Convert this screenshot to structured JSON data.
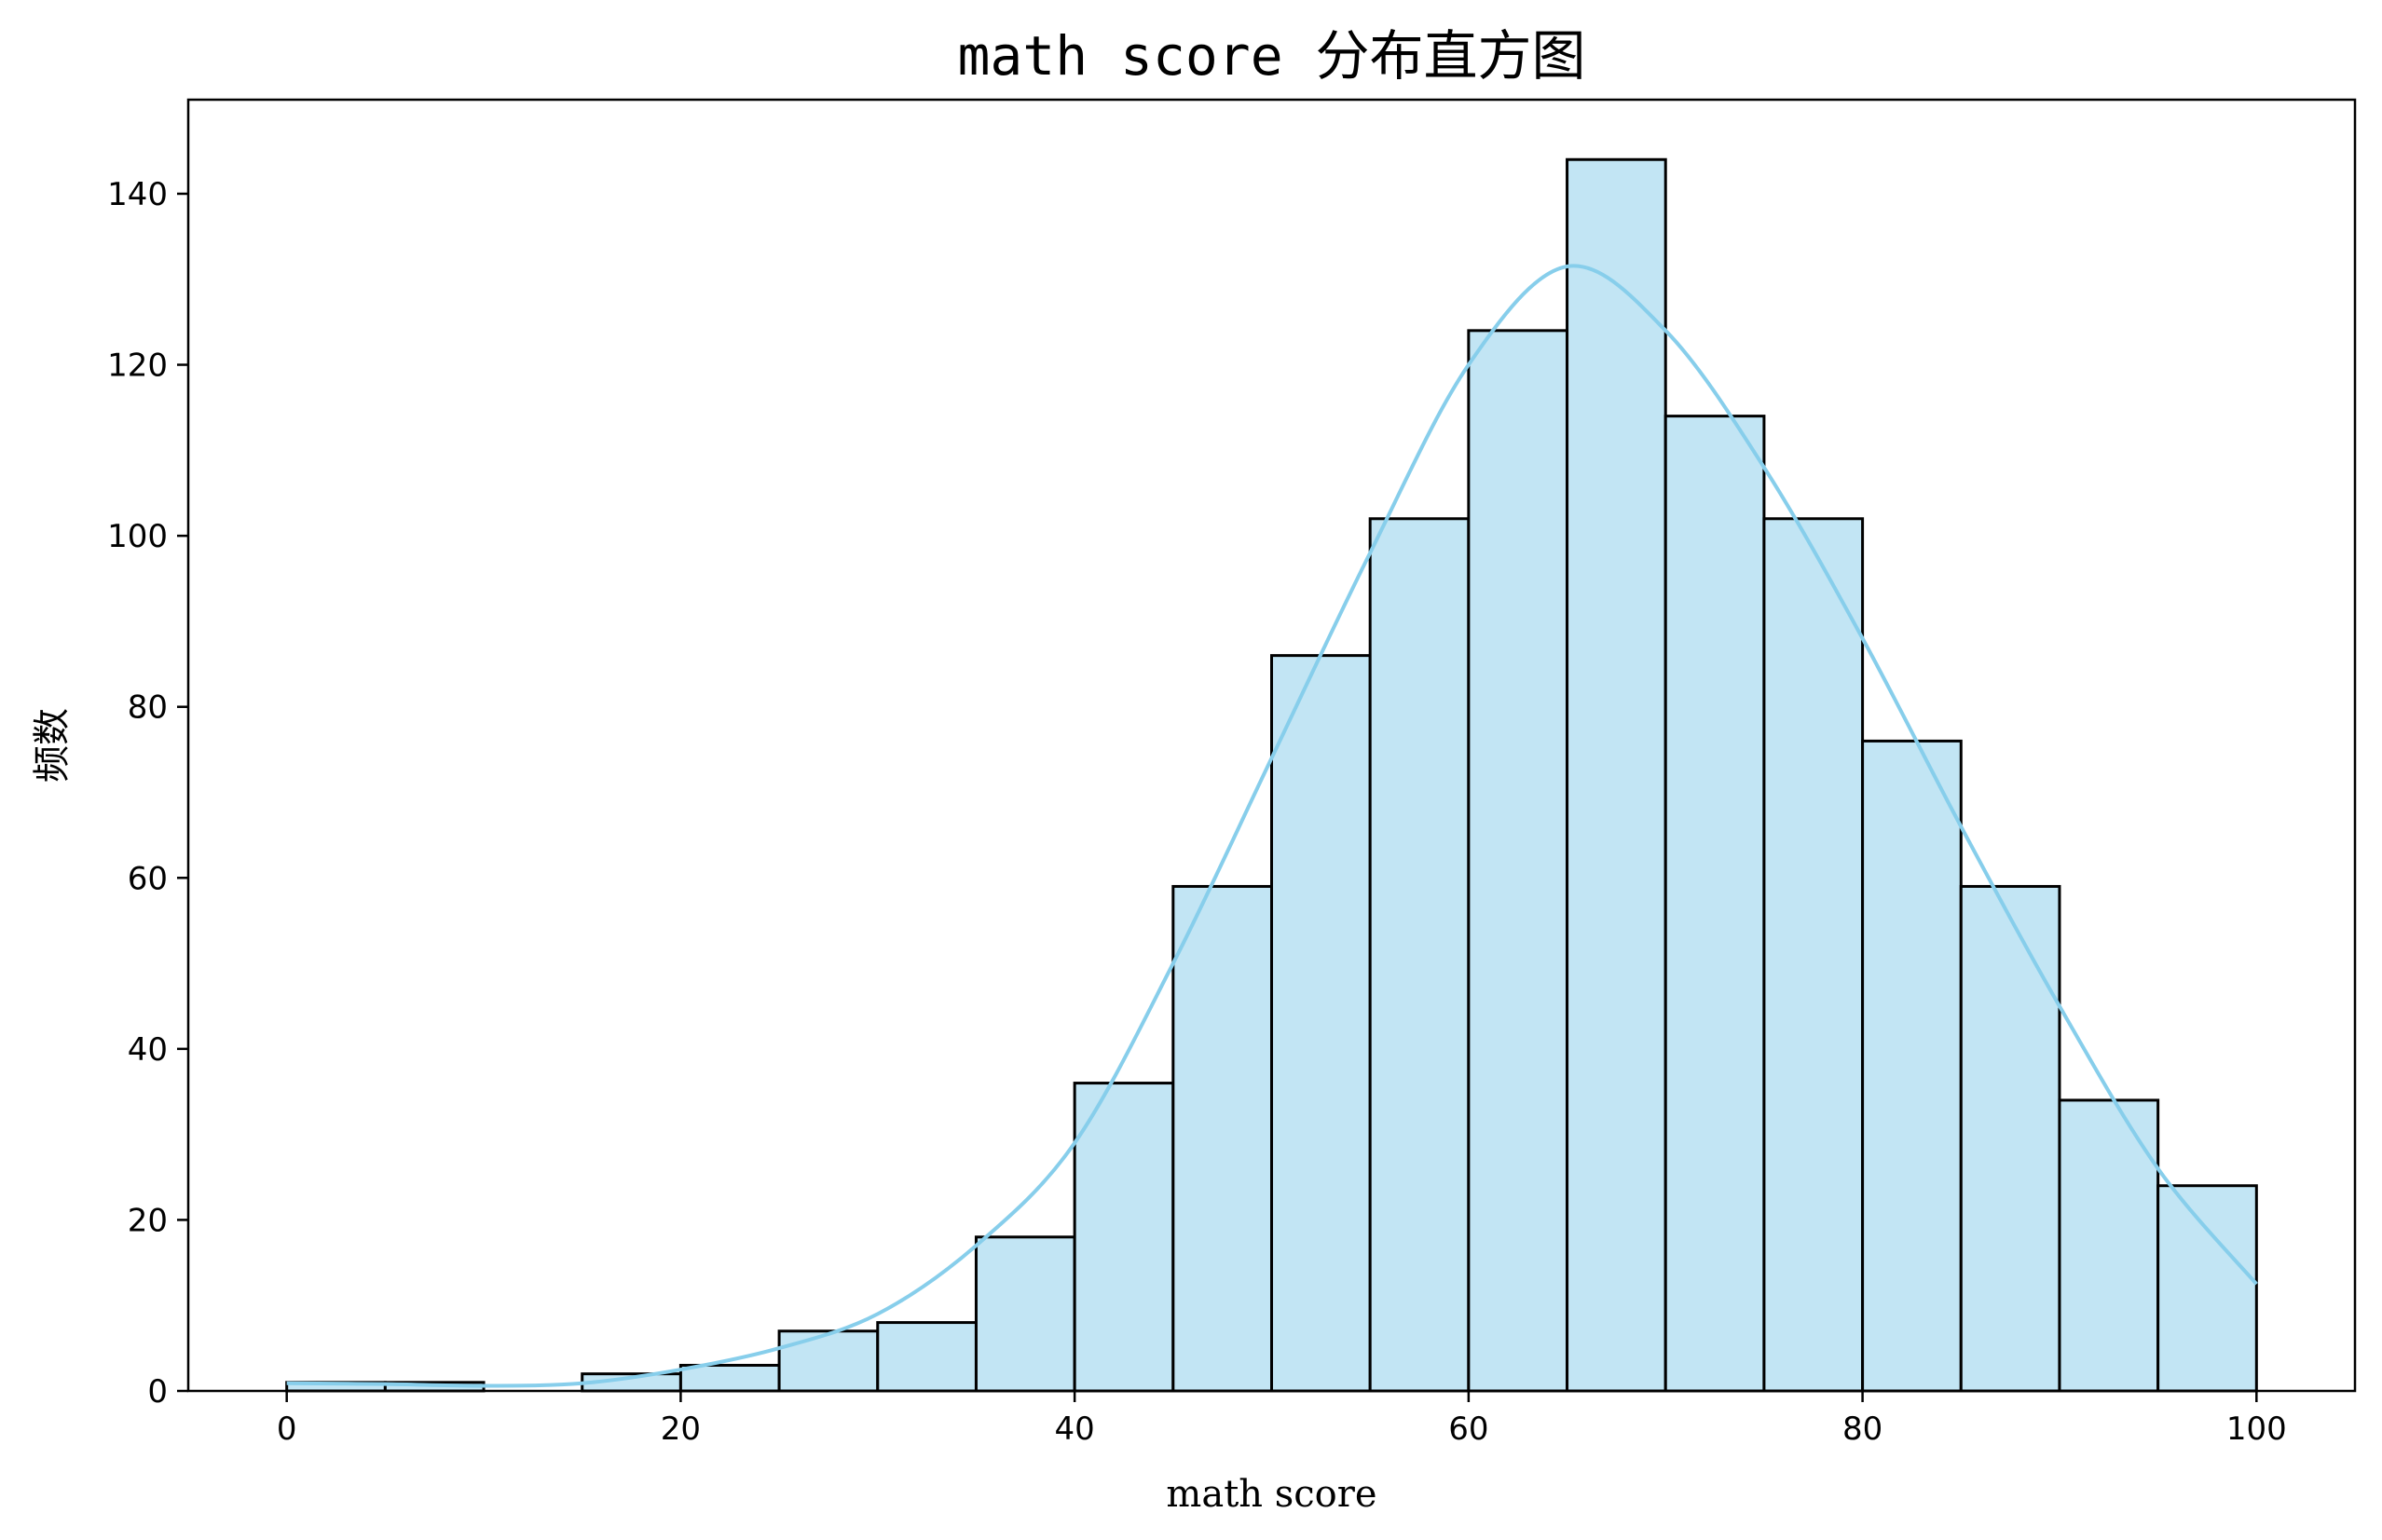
{
  "chart_data": {
    "type": "bar",
    "title": "math score 分布直方图",
    "xlabel": "math score",
    "ylabel": "频数",
    "xlim": [
      -5,
      105
    ],
    "ylim": [
      0,
      151
    ],
    "xticks": [
      "0",
      "20",
      "40",
      "60",
      "80",
      "100"
    ],
    "yticks": [
      "0",
      "20",
      "40",
      "60",
      "80",
      "100",
      "120",
      "140"
    ],
    "bins": [
      {
        "x0": 0,
        "x1": 5,
        "count": 1
      },
      {
        "x0": 5,
        "x1": 10,
        "count": 1
      },
      {
        "x0": 10,
        "x1": 15,
        "count": 0
      },
      {
        "x0": 15,
        "x1": 20,
        "count": 2
      },
      {
        "x0": 20,
        "x1": 25,
        "count": 3
      },
      {
        "x0": 25,
        "x1": 30,
        "count": 7
      },
      {
        "x0": 30,
        "x1": 35,
        "count": 8
      },
      {
        "x0": 35,
        "x1": 40,
        "count": 18
      },
      {
        "x0": 40,
        "x1": 45,
        "count": 36
      },
      {
        "x0": 45,
        "x1": 50,
        "count": 59
      },
      {
        "x0": 50,
        "x1": 55,
        "count": 86
      },
      {
        "x0": 55,
        "x1": 60,
        "count": 102
      },
      {
        "x0": 60,
        "x1": 65,
        "count": 124
      },
      {
        "x0": 65,
        "x1": 70,
        "count": 144
      },
      {
        "x0": 70,
        "x1": 75,
        "count": 114
      },
      {
        "x0": 75,
        "x1": 80,
        "count": 102
      },
      {
        "x0": 80,
        "x1": 85,
        "count": 76
      },
      {
        "x0": 85,
        "x1": 90,
        "count": 59
      },
      {
        "x0": 90,
        "x1": 95,
        "count": 34
      },
      {
        "x0": 95,
        "x1": 100,
        "count": 24
      }
    ],
    "kde": {
      "x": [
        0,
        5,
        10,
        15,
        20,
        25,
        30,
        35,
        40,
        45,
        50,
        55,
        60,
        65,
        70,
        75,
        80,
        85,
        90,
        95,
        100
      ],
      "y": [
        0.9,
        0.8,
        0.6,
        0.9,
        2.5,
        5.0,
        9.0,
        17.0,
        29.0,
        50.0,
        74.0,
        98.0,
        120.0,
        131.5,
        124.0,
        108.0,
        88.0,
        66.0,
        45.0,
        26.0,
        12.5
      ]
    },
    "grid": false,
    "colors": {
      "bar_fill": "#c2e5f4",
      "bar_edge": "#000000",
      "kde_line": "#87ceeb"
    }
  }
}
